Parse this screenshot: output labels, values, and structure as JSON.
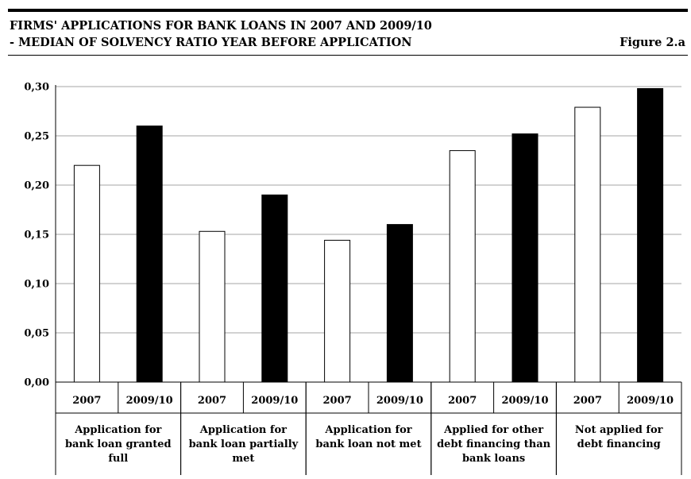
{
  "header": {
    "title_line1": "FIRMS' APPLICATIONS FOR BANK LOANS IN 2007 AND 2009/10",
    "title_line2": "- MEDIAN OF SOLVENCY RATIO YEAR BEFORE APPLICATION",
    "figure_label": "Figure 2.a"
  },
  "chart_data": {
    "type": "bar",
    "title": "FIRMS' APPLICATIONS FOR BANK LOANS IN 2007 AND 2009/10 - MEDIAN OF SOLVENCY RATIO YEAR BEFORE APPLICATION",
    "ylim": [
      0,
      0.3
    ],
    "yticks": [
      "0,00",
      "0,05",
      "0,10",
      "0,15",
      "0,20",
      "0,25",
      "0,30"
    ],
    "grid": true,
    "groups": [
      {
        "lines": [
          "Application for",
          "bank loan granted",
          "full"
        ]
      },
      {
        "lines": [
          "Application for",
          "bank loan partially",
          "met"
        ]
      },
      {
        "lines": [
          "Application for",
          "bank loan not met"
        ]
      },
      {
        "lines": [
          "Applied for other",
          "debt financing than",
          "bank loans"
        ]
      },
      {
        "lines": [
          "Not applied for",
          "debt financing"
        ]
      }
    ],
    "series": [
      {
        "label": "2007",
        "color": "#ffffff",
        "values": [
          0.22,
          0.153,
          0.144,
          0.235,
          0.279
        ]
      },
      {
        "label": "2009/10",
        "color": "#000000",
        "values": [
          0.26,
          0.19,
          0.16,
          0.252,
          0.298
        ]
      }
    ]
  }
}
